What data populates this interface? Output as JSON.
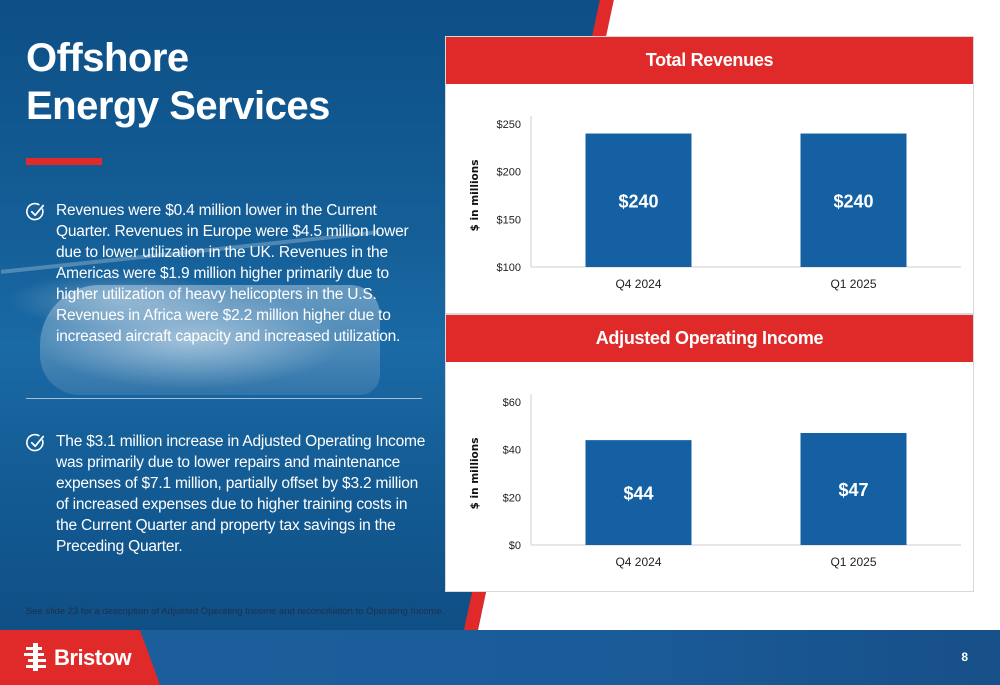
{
  "slide": {
    "title_line1": "Offshore",
    "title_line2": "Energy Services",
    "bullets": [
      "Revenues were $0.4 million lower in the Current Quarter. Revenues in Europe were $4.5 million lower due to lower utilization in the UK. Revenues in the Americas were $1.9 million higher primarily due to higher utilization of heavy helicopters in the U.S. Revenues in Africa were $2.2 million higher due to increased aircraft capacity and increased utilization.",
      "The $3.1 million increase in Adjusted Operating Income was primarily due to lower repairs and maintenance expenses of $7.1 million, partially offset by $3.2 million of increased expenses due to higher training costs in the Current Quarter and property tax savings in the Preceding Quarter."
    ],
    "footnote": "See slide 23 for a description of Adjusted Operating Income and reconciliation to Operating Income.",
    "logo_text": "Bristow",
    "page_number": "8",
    "colors": {
      "brand_red": "#e02a2a",
      "brand_blue": "#1a5c99",
      "bar_blue": "#1560a3"
    }
  },
  "chart_data": [
    {
      "type": "bar",
      "title": "Total Revenues",
      "ylabel": "$ in millions",
      "categories": [
        "Q4 2024",
        "Q1 2025"
      ],
      "values": [
        240,
        240
      ],
      "data_labels": [
        "$240",
        "$240"
      ],
      "ylim": [
        100,
        250
      ],
      "yticks": [
        100,
        150,
        200,
        250
      ],
      "ytick_labels": [
        "$100",
        "$150",
        "$200",
        "$250"
      ],
      "grid": false
    },
    {
      "type": "bar",
      "title": "Adjusted Operating Income",
      "ylabel": "$ in millions",
      "categories": [
        "Q4 2024",
        "Q1 2025"
      ],
      "values": [
        44,
        47
      ],
      "data_labels": [
        "$44",
        "$47"
      ],
      "ylim": [
        0,
        60
      ],
      "yticks": [
        0,
        20,
        40,
        60
      ],
      "ytick_labels": [
        "$0",
        "$20",
        "$40",
        "$60"
      ],
      "grid": false
    }
  ]
}
